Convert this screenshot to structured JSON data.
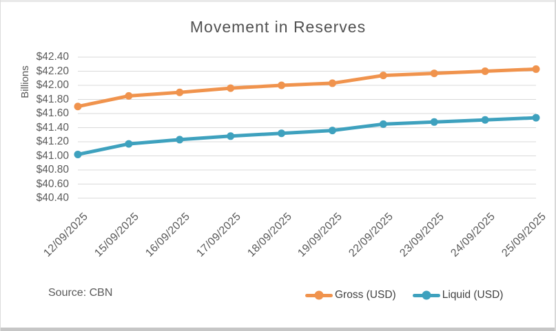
{
  "title": "Movement in Reserves",
  "y_axis_label": "Billions",
  "source_note": "Source: CBN",
  "colors": {
    "gross": "#F0934D",
    "liquid": "#3EA1BE",
    "gridline": "#D9D9D9",
    "axis_text": "#595959"
  },
  "legend": {
    "position": "bottom-right",
    "items": [
      {
        "label": "Gross (USD)",
        "color_key": "gross"
      },
      {
        "label": "Liquid (USD)",
        "color_key": "liquid"
      }
    ]
  },
  "chart_data": {
    "type": "line",
    "title": "Movement in Reserves",
    "xlabel": "",
    "ylabel": "Billions",
    "categories": [
      "12/09/2025",
      "15/09/2025",
      "16/09/2025",
      "17/09/2025",
      "18/09/2025",
      "19/09/2025",
      "22/09/2025",
      "23/09/2025",
      "24/09/2025",
      "25/09/2025"
    ],
    "series": [
      {
        "name": "Gross (USD)",
        "color_key": "gross",
        "values": [
          41.7,
          41.85,
          41.9,
          41.96,
          42.0,
          42.03,
          42.14,
          42.17,
          42.2,
          42.23
        ]
      },
      {
        "name": "Liquid (USD)",
        "color_key": "liquid",
        "values": [
          41.02,
          41.17,
          41.23,
          41.28,
          41.32,
          41.36,
          41.45,
          41.48,
          41.51,
          41.54
        ]
      }
    ],
    "ylim": [
      40.4,
      42.4
    ],
    "y_tick_step": 0.2,
    "y_ticks": [
      "$42.40",
      "$42.20",
      "$42.00",
      "$41.80",
      "$41.60",
      "$41.40",
      "$41.20",
      "$41.00",
      "$40.80",
      "$40.60",
      "$40.40"
    ],
    "grid": "horizontal",
    "legend_position": "bottom-right"
  }
}
